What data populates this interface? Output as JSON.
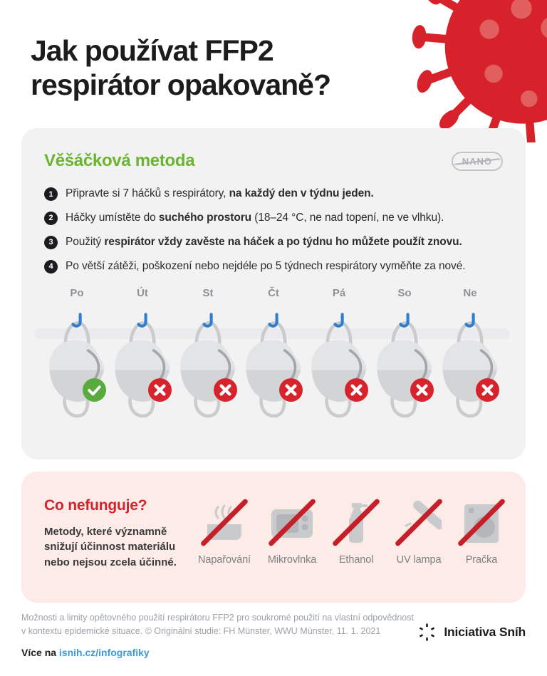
{
  "page": {
    "title_line1": "Jak používat FFP2",
    "title_line2": "respirátor opakovaně?"
  },
  "method": {
    "heading": "Věšáčková metoda",
    "badge": "NANO",
    "steps": [
      {
        "num": "1",
        "segments": [
          {
            "text": "Připravte si 7 háčků s respirátory, ",
            "bold": false
          },
          {
            "text": "na každý den v týdnu jeden.",
            "bold": true
          }
        ]
      },
      {
        "num": "2",
        "segments": [
          {
            "text": "Háčky umístěte do ",
            "bold": false
          },
          {
            "text": "suchého prostoru",
            "bold": true
          },
          {
            "text": " (18–24 °C, ne nad topení, ne ve vlhku).",
            "bold": false
          }
        ]
      },
      {
        "num": "3",
        "segments": [
          {
            "text": "Použitý ",
            "bold": false
          },
          {
            "text": "respirátor vždy zavěste na háček a po týdnu ho můžete použít znovu.",
            "bold": true
          }
        ]
      },
      {
        "num": "4",
        "segments": [
          {
            "text": "Po větší zátěži, poškození nebo nejdéle po 5 týdnech respirátory vyměňte za nové.",
            "bold": false
          }
        ]
      }
    ],
    "days": [
      "Po",
      "Út",
      "St",
      "Čt",
      "Pá",
      "So",
      "Ne"
    ],
    "day_status": [
      "ok",
      "no",
      "no",
      "no",
      "no",
      "no",
      "no"
    ]
  },
  "not_working": {
    "heading": "Co nefunguje?",
    "description": "Metody, které významně snižují účinnost materiálu nebo nejsou zcela účinné.",
    "items": [
      {
        "label": "Napařování",
        "icon": "steam-pot-icon"
      },
      {
        "label": "Mikrovlnka",
        "icon": "microwave-icon"
      },
      {
        "label": "Ethanol",
        "icon": "spray-bottle-icon"
      },
      {
        "label": "UV lampa",
        "icon": "uv-lamp-icon"
      },
      {
        "label": "Pračka",
        "icon": "washing-machine-icon"
      }
    ]
  },
  "footer": {
    "disclaimer_line1": "Možnosti a limity opětovného použití respirátoru FFP2 pro soukromé použití na vlastní odpovědnost",
    "disclaimer_line2": "v kontextu epidemické situace. © Originální studie: FH Münster, WWU Münster, 11. 1. 2021",
    "more_label": "Více na",
    "more_link": "isnih.cz/infografiky",
    "brand": "Iniciativa Sníh"
  },
  "colors": {
    "accent_green": "#6ab42f",
    "check_green": "#58ab3c",
    "cross_red": "#d7232b",
    "heading_red": "#d2232e",
    "slash_red": "#c5202a",
    "virus_red": "#d7222b",
    "virus_dot_red": "#e25f5f",
    "card_gray": "#f2f2f3",
    "card_pink": "#fcebe7",
    "hook_blue": "#2e7fd2",
    "link_blue": "#3b99d9"
  }
}
